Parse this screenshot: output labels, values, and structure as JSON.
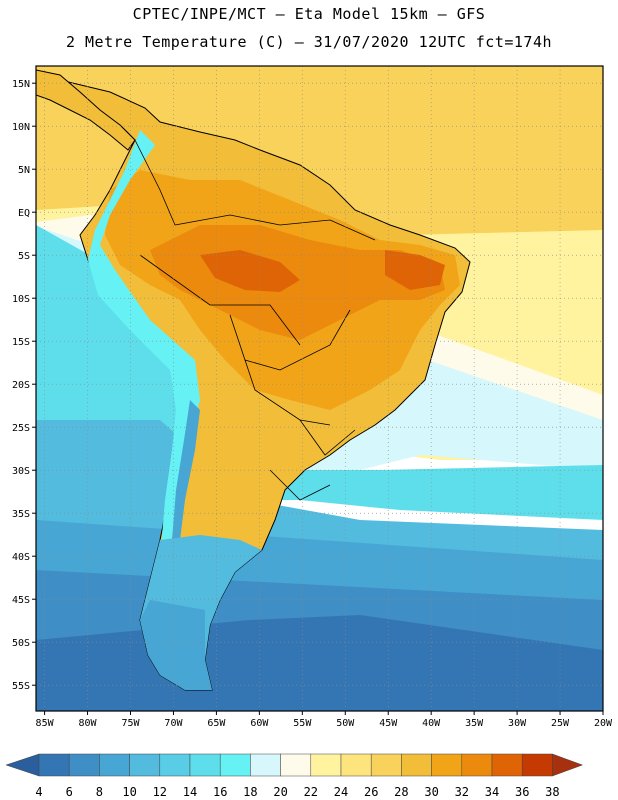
{
  "header": {
    "line1": "CPTEC/INPE/MCT –  Eta Model 15km – GFS",
    "line2": "2 Metre Temperature (C) – 31/07/2020 12UTC fct=174h"
  },
  "axes": {
    "lat_labels": [
      "15N",
      "10N",
      "5N",
      "EQ",
      "5S",
      "10S",
      "15S",
      "20S",
      "25S",
      "30S",
      "35S",
      "40S",
      "45S",
      "50S",
      "55S"
    ],
    "lon_labels": [
      "85W",
      "80W",
      "75W",
      "70W",
      "65W",
      "60W",
      "55W",
      "50W",
      "45W",
      "40W",
      "35W",
      "30W",
      "25W",
      "20W"
    ],
    "lat_range": [
      17,
      -58
    ],
    "lon_range": [
      -86,
      -20
    ]
  },
  "colorbar": {
    "values": [
      "4",
      "6",
      "8",
      "10",
      "12",
      "14",
      "16",
      "18",
      "20",
      "22",
      "24",
      "26",
      "28",
      "30",
      "32",
      "34",
      "36",
      "38"
    ],
    "colors": [
      "#2a5e9c",
      "#3476b3",
      "#3f8ec6",
      "#48a6d4",
      "#52bbde",
      "#58cde5",
      "#5ddeea",
      "#66f2f4",
      "#d6f7fb",
      "#fffbea",
      "#fff3a0",
      "#fde47c",
      "#f8d25a",
      "#f2bd38",
      "#f2a418",
      "#ec8a0e",
      "#df6406",
      "#c43a02",
      "#a7300f"
    ]
  },
  "fields": {
    "ocean_south_far": "#3476b3",
    "ocean_south_mid": "#3f8ec6",
    "ocean_mid": "#48a6d4",
    "ocean_cool": "#52bbde",
    "ocean_cyan": "#5ddeea",
    "ocean_light": "#d6f7fb",
    "ocean_cream": "#fffbea",
    "ocean_yellow": "#fff3a0",
    "ocean_warm": "#f8d25a",
    "land_hot": "#f2a418",
    "land_hotter": "#ec8a0e",
    "land_hottest": "#df6406",
    "land_warm": "#f2bd38",
    "andes_cold": "#48a6d4",
    "andes_cyan": "#66f2f4"
  }
}
